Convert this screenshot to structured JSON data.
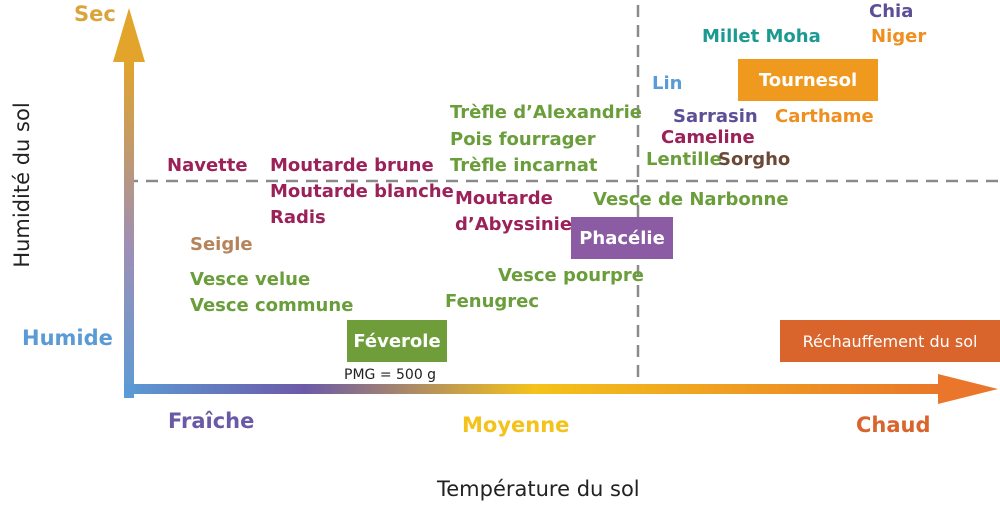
{
  "colors": {
    "green": "#6a9e3a",
    "purple": "#9b2159",
    "violet": "#5c4f96",
    "orange": "#ee8f1f",
    "blue": "#5b9bd5",
    "teal": "#1b9a92",
    "tan": "#b5845b",
    "brown": "#6a4a36",
    "box_green": "#6e9d3a",
    "box_violet": "#8b5ba4",
    "box_orange": "#ef9a1f",
    "box_rust": "#d9642c",
    "axis_start": "#5b9bd5",
    "axis_mid": "#f4c21a",
    "axis_end": "#e9762a",
    "axis_y_top": "#e2a42a"
  },
  "axes": {
    "y_top": "Sec",
    "y_bottom": "Humide",
    "y_title": "Humidité du sol",
    "x_left": "Fraîche",
    "x_mid": "Moyenne",
    "x_right": "Chaud",
    "x_title": "Température du sol"
  },
  "species": {
    "navette": "Navette",
    "moutarde_brune": "Moutarde brune",
    "moutarde_blanche": "Moutarde blanche",
    "radis": "Radis",
    "seigle": "Seigle",
    "vesce_velue": "Vesce velue",
    "vesce_commune": "Vesce commune",
    "trefle_alexandrie": "Trèfle d’Alexandrie",
    "pois_fourrager": "Pois fourrager",
    "trefle_incarnat": "Trèfle incarnat",
    "moutarde_abyssinie_1": "Moutarde",
    "moutarde_abyssinie_2": "d’Abyssinie",
    "vesce_narbonne": "Vesce de Narbonne",
    "vesce_pourpre": "Vesce pourpre",
    "fenugrec": "Fenugrec",
    "lin": "Lin",
    "sarrasin": "Sarrasin",
    "cameline": "Cameline",
    "lentille": "Lentille",
    "sorgho": "Sorgho",
    "carthame": "Carthame",
    "millet_moha": "Millet Moha",
    "chia": "Chia",
    "niger": "Niger"
  },
  "boxes": {
    "feverole": "Féverole",
    "phacelie": "Phacélie",
    "tournesol": "Tournesol",
    "rechauffement": "Réchauffement du sol"
  },
  "note_pmg": "PMG = 500 g"
}
